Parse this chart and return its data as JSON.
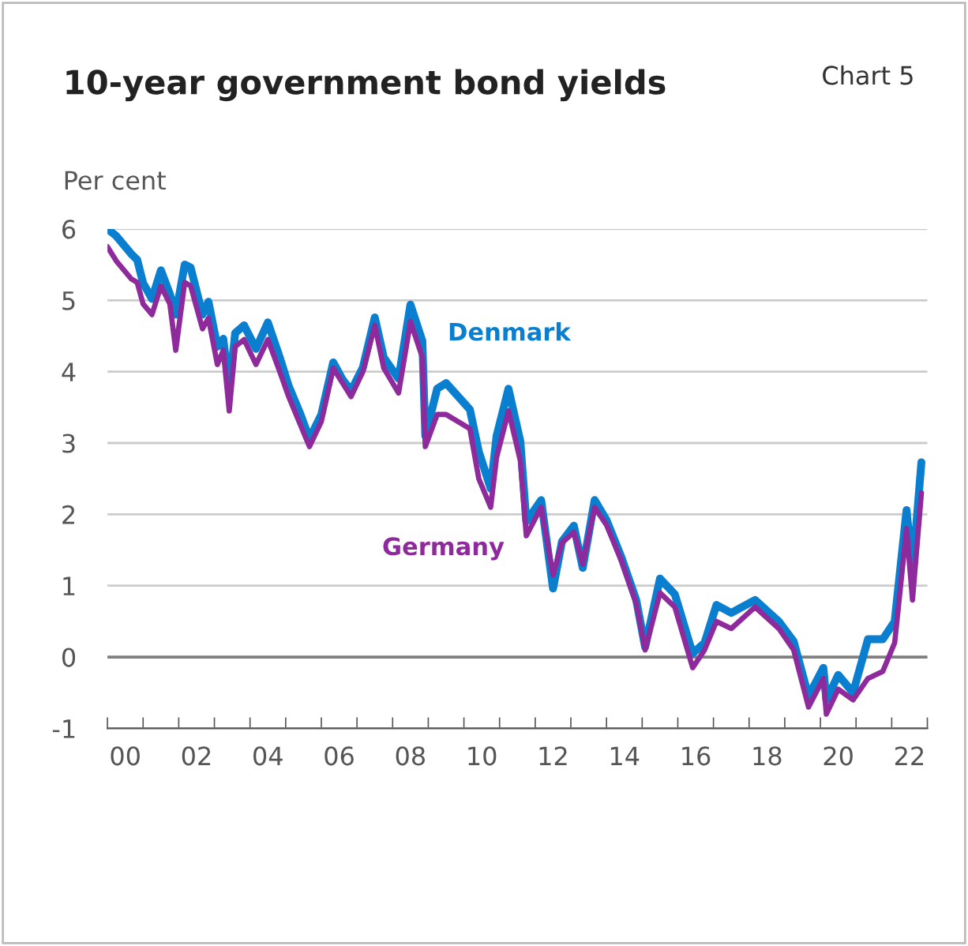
{
  "chart_data": {
    "type": "line",
    "title": "10-year government bond yields",
    "subtitle": "Chart 5",
    "ylabel": "Per cent",
    "xlim": [
      "2000-01",
      "2023-01"
    ],
    "ylim": [
      -1,
      6
    ],
    "yticks": [
      -1,
      0,
      1,
      2,
      3,
      4,
      5,
      6
    ],
    "xticks": [
      {
        "value": "2000-01",
        "label": null
      },
      {
        "value": "2001-01",
        "label": null
      },
      {
        "value": "2002-01",
        "label": null
      },
      {
        "value": "2003-01",
        "label": null
      },
      {
        "value": "2004-01",
        "label": null
      },
      {
        "value": "2005-01",
        "label": null
      },
      {
        "value": "2006-01",
        "label": null
      },
      {
        "value": "2007-01",
        "label": null
      },
      {
        "value": "2008-01",
        "label": null
      },
      {
        "value": "2009-01",
        "label": null
      },
      {
        "value": "2010-01",
        "label": null
      },
      {
        "value": "2011-01",
        "label": null
      },
      {
        "value": "2012-01",
        "label": null
      },
      {
        "value": "2013-01",
        "label": null
      },
      {
        "value": "2014-01",
        "label": null
      },
      {
        "value": "2015-01",
        "label": null
      },
      {
        "value": "2016-01",
        "label": null
      },
      {
        "value": "2017-01",
        "label": null
      },
      {
        "value": "2018-01",
        "label": null
      },
      {
        "value": "2019-01",
        "label": null
      },
      {
        "value": "2020-01",
        "label": null
      },
      {
        "value": "2021-01",
        "label": null
      },
      {
        "value": "2022-01",
        "label": null
      },
      {
        "value": "2023-01",
        "label": null
      },
      {
        "value": "2000-07",
        "label": "00"
      },
      {
        "value": "2002-07",
        "label": "02"
      },
      {
        "value": "2004-07",
        "label": "04"
      },
      {
        "value": "2006-07",
        "label": "06"
      },
      {
        "value": "2008-07",
        "label": "08"
      },
      {
        "value": "2010-07",
        "label": "10"
      },
      {
        "value": "2012-07",
        "label": "12"
      },
      {
        "value": "2014-07",
        "label": "14"
      },
      {
        "value": "2016-07",
        "label": "16"
      },
      {
        "value": "2018-07",
        "label": "18"
      },
      {
        "value": "2020-07",
        "label": "20"
      },
      {
        "value": "2022-07",
        "label": "22"
      }
    ],
    "grid": "y",
    "legend": false,
    "line_style": "solid",
    "marker": "none",
    "ref_lines": [
      {
        "axis": "y",
        "value": 0,
        "label": null,
        "color": "#7f7f7f"
      }
    ],
    "x": [
      "2000-01",
      "2000-04",
      "2000-09",
      "2000-11",
      "2001-01",
      "2001-04",
      "2001-07",
      "2001-10",
      "2001-12",
      "2002-03",
      "2002-05",
      "2002-09",
      "2002-11",
      "2003-02",
      "2003-04",
      "2003-06",
      "2003-08",
      "2003-11",
      "2004-03",
      "2004-07",
      "2004-11",
      "2005-02",
      "2005-06",
      "2005-09",
      "2006-01",
      "2006-05",
      "2006-08",
      "2006-11",
      "2007-03",
      "2007-07",
      "2007-10",
      "2008-03",
      "2008-07",
      "2008-11",
      "2008-12",
      "2009-04",
      "2009-07",
      "2010-03",
      "2010-06",
      "2010-10",
      "2010-12",
      "2011-04",
      "2011-08",
      "2011-10",
      "2012-03",
      "2012-07",
      "2012-10",
      "2013-02",
      "2013-05",
      "2013-09",
      "2014-01",
      "2014-06",
      "2014-11",
      "2015-02",
      "2015-07",
      "2015-12",
      "2016-06",
      "2016-10",
      "2017-02",
      "2017-07",
      "2018-03",
      "2018-11",
      "2019-04",
      "2019-09",
      "2020-02",
      "2020-03",
      "2020-07",
      "2020-12",
      "2021-05",
      "2021-10",
      "2022-02",
      "2022-06",
      "2022-08",
      "2022-11"
    ],
    "series": [
      {
        "name": "Denmark",
        "color": "#0a7fd0",
        "values": [
          6.0,
          5.9,
          5.65,
          5.57,
          5.24,
          5.02,
          5.42,
          5.09,
          4.8,
          5.5,
          5.46,
          4.8,
          4.98,
          4.35,
          4.46,
          3.76,
          4.54,
          4.65,
          4.32,
          4.69,
          4.2,
          3.8,
          3.4,
          3.06,
          3.4,
          4.13,
          3.9,
          3.73,
          4.06,
          4.76,
          4.2,
          3.9,
          4.94,
          4.43,
          3.1,
          3.76,
          3.84,
          3.47,
          2.88,
          2.36,
          3.1,
          3.76,
          3.02,
          1.9,
          2.2,
          0.96,
          1.62,
          1.84,
          1.25,
          2.2,
          1.92,
          1.4,
          0.8,
          0.14,
          1.1,
          0.88,
          0.05,
          0.2,
          0.73,
          0.62,
          0.8,
          0.5,
          0.22,
          -0.55,
          -0.15,
          -0.6,
          -0.25,
          -0.5,
          0.25,
          0.25,
          0.5,
          2.06,
          1.2,
          2.73
        ]
      },
      {
        "name": "Germany",
        "color": "#8e2a9c",
        "values": [
          5.75,
          5.55,
          5.3,
          5.25,
          4.95,
          4.8,
          5.2,
          4.95,
          4.3,
          5.25,
          5.2,
          4.6,
          4.75,
          4.1,
          4.3,
          3.45,
          4.35,
          4.45,
          4.1,
          4.45,
          4.0,
          3.65,
          3.25,
          2.95,
          3.3,
          4.05,
          3.85,
          3.65,
          4.0,
          4.65,
          4.05,
          3.7,
          4.7,
          4.2,
          2.95,
          3.4,
          3.4,
          3.2,
          2.5,
          2.1,
          2.8,
          3.45,
          2.75,
          1.7,
          2.1,
          1.15,
          1.6,
          1.75,
          1.3,
          2.1,
          1.85,
          1.35,
          0.75,
          0.1,
          0.9,
          0.7,
          -0.15,
          0.1,
          0.5,
          0.4,
          0.7,
          0.4,
          0.1,
          -0.7,
          -0.3,
          -0.8,
          -0.45,
          -0.6,
          -0.3,
          -0.2,
          0.2,
          1.8,
          0.8,
          2.3
        ]
      }
    ]
  }
}
